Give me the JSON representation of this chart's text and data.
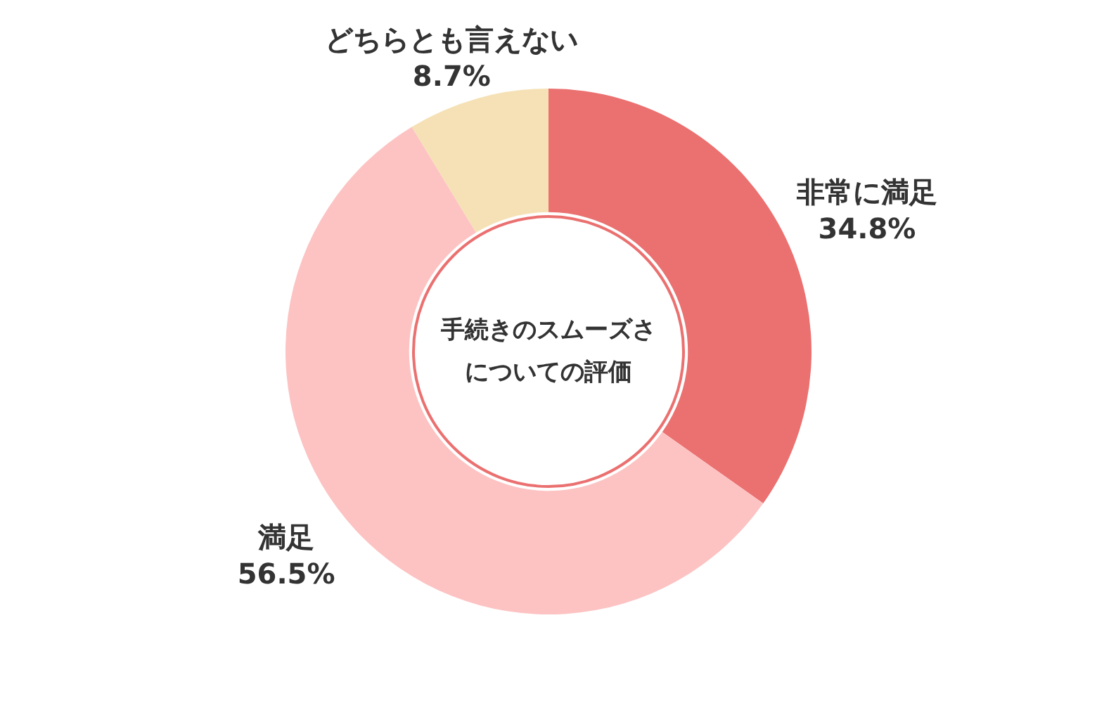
{
  "chart_data": {
    "type": "donut",
    "title": "手続きのスムーズさについての評価",
    "categories": [
      "非常に満足",
      "満足",
      "どちらとも言えない"
    ],
    "values": [
      34.8,
      56.5,
      8.7
    ],
    "colors": [
      "#eb7070",
      "#fdc3c3",
      "#f5e1b5"
    ],
    "value_labels": [
      "34.8%",
      "56.5%",
      "8.7%"
    ],
    "legend": false
  }
}
